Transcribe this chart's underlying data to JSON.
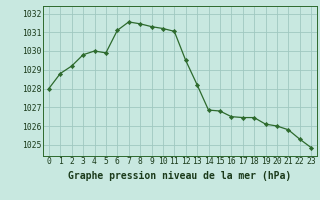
{
  "x": [
    0,
    1,
    2,
    3,
    4,
    5,
    6,
    7,
    8,
    9,
    10,
    11,
    12,
    13,
    14,
    15,
    16,
    17,
    18,
    19,
    20,
    21,
    22,
    23
  ],
  "y": [
    1028.0,
    1028.8,
    1029.2,
    1029.8,
    1030.0,
    1029.9,
    1031.1,
    1031.55,
    1031.45,
    1031.3,
    1031.2,
    1031.05,
    1029.5,
    1028.2,
    1026.85,
    1026.8,
    1026.5,
    1026.45,
    1026.45,
    1026.1,
    1026.0,
    1025.8,
    1025.3,
    1024.85
  ],
  "line_color": "#2d6a2d",
  "marker_color": "#2d6a2d",
  "bg_color": "#c8e8e0",
  "grid_color": "#a0c8c0",
  "xlabel": "Graphe pression niveau de la mer (hPa)",
  "ylim_min": 1024.4,
  "ylim_max": 1032.4,
  "yticks": [
    1025,
    1026,
    1027,
    1028,
    1029,
    1030,
    1031,
    1032
  ],
  "xticks": [
    0,
    1,
    2,
    3,
    4,
    5,
    6,
    7,
    8,
    9,
    10,
    11,
    12,
    13,
    14,
    15,
    16,
    17,
    18,
    19,
    20,
    21,
    22,
    23
  ],
  "title_fontsize": 7.0,
  "tick_fontsize": 5.8,
  "axis_label_color": "#1a3a1a",
  "spine_color": "#2d6a2d"
}
